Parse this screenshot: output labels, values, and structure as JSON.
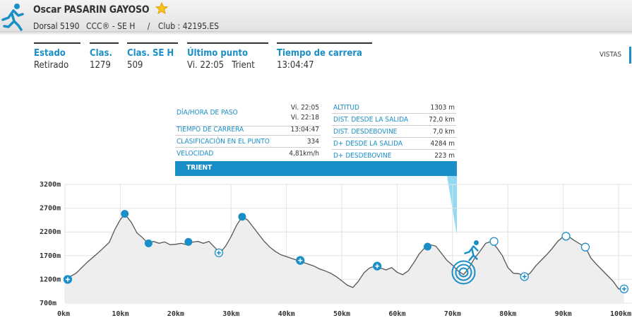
{
  "athlete": {
    "name": "Oscar PASARIN GAYOSO",
    "bib": "Dorsal 5190",
    "race": "CCC® - SE H",
    "separator": "/",
    "club": "Club : 42195.ES"
  },
  "stats": [
    {
      "label": "Estado",
      "value": "Retirado"
    },
    {
      "label": "Clas.",
      "value": "1279"
    },
    {
      "label": "Clas. SE H",
      "value": "509"
    },
    {
      "label": "Último punto",
      "value": "Vi. 22:05   Trient"
    },
    {
      "label": "Tiempo de carrera",
      "value": "13:04:47"
    }
  ],
  "views_label": "VISTAS",
  "point_info": {
    "left": [
      {
        "label": "DÍA/HORA DE PASO",
        "value": "Vi. 22:05",
        "value2": "Vi. 22:18"
      },
      {
        "label": "TIEMPO DE CARRERA",
        "value": "13:04:47"
      },
      {
        "label": "CLASIFICACIÓN EN EL PUNTO",
        "value": "334"
      },
      {
        "label": "VELOCIDAD",
        "value": "4,81km/h"
      }
    ],
    "right": [
      {
        "label": "ALTITUD",
        "value": "1303 m"
      },
      {
        "label": "DIST. DESDE LA SALIDA",
        "value": "72,0 km"
      },
      {
        "label": "DIST. DESDEBOVINE",
        "value": "7,0 km"
      },
      {
        "label": "D+ DESDE LA SALIDA",
        "value": "4284 m"
      },
      {
        "label": "D+ DESDEBOVINE",
        "value": "223 m"
      }
    ],
    "point_name": "TRIENT"
  },
  "colors": {
    "accent": "#1a8fc7",
    "profile": "#555555",
    "fill": "#eeeeee"
  },
  "chart_data": {
    "type": "area",
    "xlabel": "",
    "ylabel": "",
    "x_ticks": [
      "0km",
      "10km",
      "20km",
      "30km",
      "40km",
      "50km",
      "60km",
      "70km",
      "80km",
      "90km",
      "100km"
    ],
    "y_ticks": [
      "3200m",
      "2700m",
      "2200m",
      "1700m",
      "1200m",
      "700m"
    ],
    "xlim": [
      0,
      100
    ],
    "ylim": [
      700,
      3200
    ],
    "profile": [
      [
        0,
        1200
      ],
      [
        2,
        1330
      ],
      [
        4,
        1560
      ],
      [
        6,
        1760
      ],
      [
        8,
        1980
      ],
      [
        9,
        2250
      ],
      [
        10,
        2460
      ],
      [
        10.8,
        2580
      ],
      [
        12,
        2400
      ],
      [
        13,
        2180
      ],
      [
        14,
        2080
      ],
      [
        15,
        1960
      ],
      [
        16,
        2000
      ],
      [
        17,
        1960
      ],
      [
        18,
        1990
      ],
      [
        19,
        1930
      ],
      [
        20,
        1940
      ],
      [
        21,
        1960
      ],
      [
        22,
        1930
      ],
      [
        23,
        1985
      ],
      [
        24,
        2000
      ],
      [
        25,
        1960
      ],
      [
        26,
        2000
      ],
      [
        27,
        1880
      ],
      [
        28,
        1760
      ],
      [
        29,
        1900
      ],
      [
        30,
        2100
      ],
      [
        31,
        2340
      ],
      [
        32,
        2520
      ],
      [
        33,
        2450
      ],
      [
        34,
        2300
      ],
      [
        35,
        2150
      ],
      [
        36,
        2000
      ],
      [
        37,
        1880
      ],
      [
        38,
        1790
      ],
      [
        39,
        1720
      ],
      [
        40,
        1680
      ],
      [
        41,
        1640
      ],
      [
        42,
        1600
      ],
      [
        43,
        1560
      ],
      [
        44,
        1520
      ],
      [
        45,
        1480
      ],
      [
        46,
        1420
      ],
      [
        47,
        1380
      ],
      [
        48,
        1330
      ],
      [
        49,
        1260
      ],
      [
        50,
        1170
      ],
      [
        51,
        1080
      ],
      [
        52,
        1030
      ],
      [
        53,
        1160
      ],
      [
        54,
        1340
      ],
      [
        55,
        1440
      ],
      [
        56,
        1480
      ],
      [
        57,
        1440
      ],
      [
        58,
        1400
      ],
      [
        59,
        1450
      ],
      [
        60,
        1350
      ],
      [
        61,
        1300
      ],
      [
        62,
        1380
      ],
      [
        63,
        1550
      ],
      [
        64,
        1740
      ],
      [
        65,
        1870
      ],
      [
        66,
        1930
      ],
      [
        67,
        1900
      ],
      [
        68,
        1750
      ],
      [
        69,
        1600
      ],
      [
        70,
        1500
      ],
      [
        71,
        1380
      ],
      [
        72,
        1303
      ],
      [
        73,
        1450
      ],
      [
        74,
        1650
      ],
      [
        75,
        1800
      ],
      [
        76,
        1960
      ],
      [
        77,
        2000
      ],
      [
        78,
        1870
      ],
      [
        79,
        1700
      ],
      [
        80,
        1450
      ],
      [
        81,
        1330
      ],
      [
        82,
        1320
      ],
      [
        83,
        1260
      ],
      [
        84,
        1330
      ],
      [
        85,
        1480
      ],
      [
        86,
        1600
      ],
      [
        87,
        1720
      ],
      [
        88,
        1850
      ],
      [
        89,
        2000
      ],
      [
        90,
        2100
      ],
      [
        91,
        2100
      ],
      [
        92,
        2020
      ],
      [
        93,
        1950
      ],
      [
        94,
        1880
      ],
      [
        95,
        1650
      ],
      [
        96,
        1520
      ],
      [
        97,
        1400
      ],
      [
        98,
        1280
      ],
      [
        99,
        1160
      ],
      [
        100,
        1000
      ],
      [
        101,
        1000
      ]
    ],
    "markers": [
      {
        "x": 0.5,
        "y": 1200,
        "kind": "plus-filled"
      },
      {
        "x": 10.8,
        "y": 2580,
        "kind": "dot"
      },
      {
        "x": 15.1,
        "y": 1960,
        "kind": "dot"
      },
      {
        "x": 22.3,
        "y": 1990,
        "kind": "dot"
      },
      {
        "x": 27.8,
        "y": 1760,
        "kind": "plus-open"
      },
      {
        "x": 32.0,
        "y": 2520,
        "kind": "dot"
      },
      {
        "x": 42.5,
        "y": 1600,
        "kind": "plus-filled"
      },
      {
        "x": 56.4,
        "y": 1480,
        "kind": "plus-filled"
      },
      {
        "x": 65.5,
        "y": 1890,
        "kind": "dot"
      },
      {
        "x": 72.0,
        "y": 1303,
        "kind": "current"
      },
      {
        "x": 77.5,
        "y": 2000,
        "kind": "ring"
      },
      {
        "x": 83.0,
        "y": 1260,
        "kind": "plus-open"
      },
      {
        "x": 90.5,
        "y": 2110,
        "kind": "ring"
      },
      {
        "x": 94.0,
        "y": 1880,
        "kind": "ring"
      },
      {
        "x": 101.0,
        "y": 1000,
        "kind": "plus-open"
      }
    ]
  }
}
